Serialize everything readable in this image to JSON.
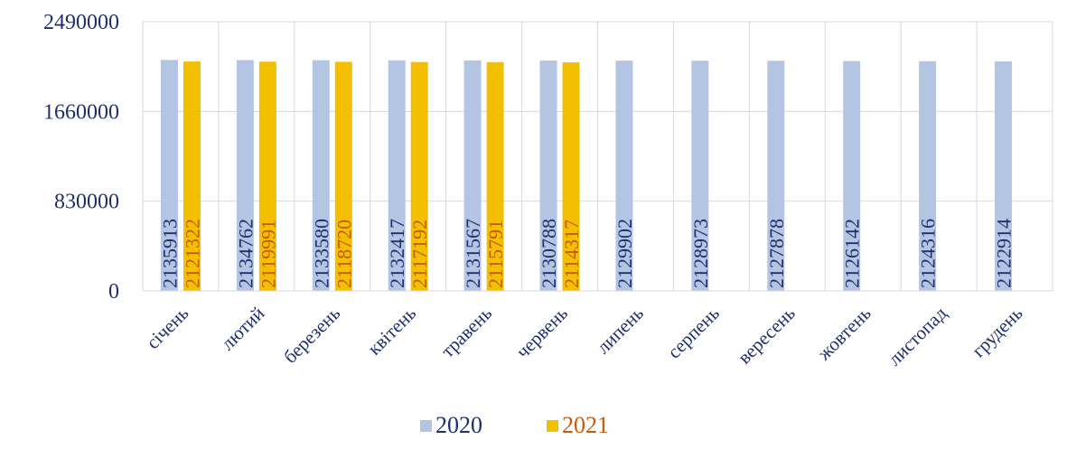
{
  "chart_data": {
    "type": "bar",
    "categories": [
      "січень",
      "лютий",
      "березень",
      "квітень",
      "травень",
      "червень",
      "липень",
      "серпень",
      "вересень",
      "жовтень",
      "листопад",
      "грудень"
    ],
    "series": [
      {
        "name": "2020",
        "color": "#b4c5e4",
        "label_color": "#1f2f6b",
        "values": [
          2135913,
          2134762,
          2133580,
          2132417,
          2131567,
          2130788,
          2129902,
          2128973,
          2127878,
          2126142,
          2124316,
          2122914
        ]
      },
      {
        "name": "2021",
        "color": "#f2c000",
        "label_color": "#c55a11",
        "values": [
          2121322,
          2119991,
          2118720,
          2117192,
          2115791,
          2114317,
          null,
          null,
          null,
          null,
          null,
          null
        ]
      }
    ],
    "yticks": [
      "0",
      "830000",
      "1660000",
      "2490000"
    ],
    "ylim": [
      0,
      2490000
    ],
    "grid": true,
    "legend_position": "bottom"
  }
}
